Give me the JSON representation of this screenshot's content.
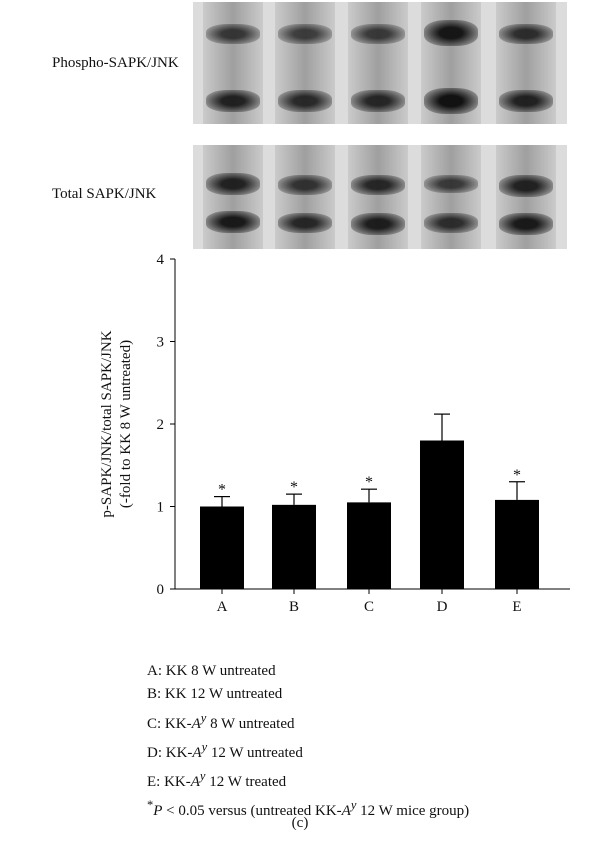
{
  "blots": {
    "phospho_label": "Phospho-SAPK/JNK",
    "total_label": "Total SAPK/JNK",
    "lanes": [
      "A",
      "B",
      "C",
      "D",
      "E"
    ]
  },
  "chart_data": {
    "type": "bar",
    "categories": [
      "A",
      "B",
      "C",
      "D",
      "E"
    ],
    "values": [
      1.0,
      1.02,
      1.05,
      1.8,
      1.08
    ],
    "errors": [
      0.12,
      0.13,
      0.16,
      0.32,
      0.22
    ],
    "significant": [
      true,
      true,
      true,
      false,
      true
    ],
    "significance_marker": "*",
    "ylabel_line1": "p-SAPK/JNK/total SAPK/JNK",
    "ylabel_line2": "(-fold to KK 8 W untreated)",
    "ylim": [
      0,
      4
    ],
    "yticks": [
      "0",
      "1",
      "2",
      "3",
      "4"
    ],
    "bar_color": "#000000",
    "grid": false
  },
  "legend": {
    "a": "A: KK 8 W untreated",
    "b": "B: KK 12 W untreated",
    "c_prefix": "C: KK-",
    "c_suffix": " 8 W untreated",
    "d_prefix": "D: KK-",
    "d_suffix": " 12 W untreated",
    "e_prefix": "E: KK-",
    "e_suffix": " 12 W treated",
    "allele_base": "A",
    "allele_sup": "y",
    "note_star": "*",
    "note_p": "P",
    "note_mid": " < 0.05 versus (untreated KK-",
    "note_end": " 12 W mice group)"
  },
  "caption": "(c)"
}
